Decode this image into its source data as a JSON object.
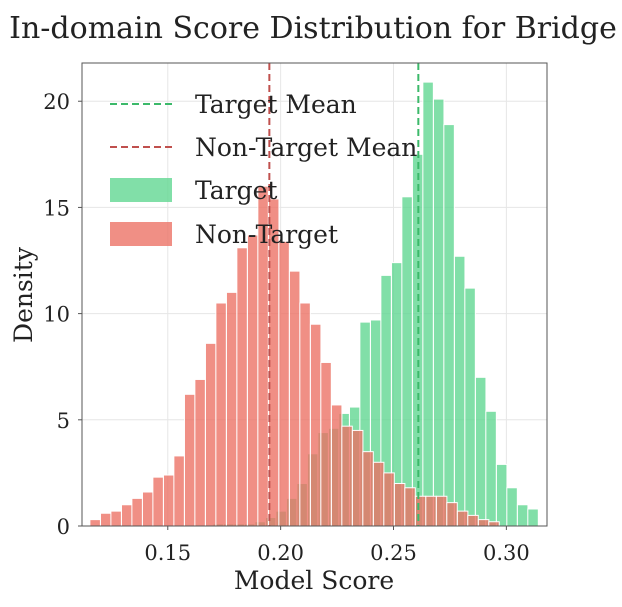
{
  "chart_data": {
    "type": "bar",
    "title": "In-domain Score Distribution for Bridge",
    "xlabel": "Model Score",
    "ylabel": "Density",
    "xlim": [
      0.112,
      0.318
    ],
    "ylim": [
      0,
      21.8
    ],
    "xticks": [
      0.15,
      0.2,
      0.25,
      0.3
    ],
    "xtick_labels": [
      "0.15",
      "0.20",
      "0.25",
      "0.30"
    ],
    "yticks": [
      0,
      5,
      10,
      15,
      20
    ],
    "ytick_labels": [
      "0",
      "5",
      "10",
      "15",
      "20"
    ],
    "grid": true,
    "legend_position": "top-left",
    "bin_width": 0.00465,
    "series": [
      {
        "name": "Target",
        "kind": "histogram",
        "color": "#5dd68f",
        "bins": [
          {
            "x0": 0.17,
            "value": 0.1
          },
          {
            "x0": 0.1747,
            "value": 0.1
          },
          {
            "x0": 0.1793,
            "value": 0.1
          },
          {
            "x0": 0.184,
            "value": 0.1
          },
          {
            "x0": 0.1886,
            "value": 0.2
          },
          {
            "x0": 0.1933,
            "value": 0.4
          },
          {
            "x0": 0.1979,
            "value": 0.7
          },
          {
            "x0": 0.2026,
            "value": 1.3
          },
          {
            "x0": 0.2072,
            "value": 2.0
          },
          {
            "x0": 0.2119,
            "value": 3.4
          },
          {
            "x0": 0.2165,
            "value": 4.4
          },
          {
            "x0": 0.2212,
            "value": 4.6
          },
          {
            "x0": 0.2258,
            "value": 5.3
          },
          {
            "x0": 0.2305,
            "value": 5.6
          },
          {
            "x0": 0.2351,
            "value": 9.6
          },
          {
            "x0": 0.2398,
            "value": 9.7
          },
          {
            "x0": 0.2444,
            "value": 11.8
          },
          {
            "x0": 0.2491,
            "value": 12.4
          },
          {
            "x0": 0.2537,
            "value": 15.5
          },
          {
            "x0": 0.2584,
            "value": 17.5
          },
          {
            "x0": 0.263,
            "value": 20.9
          },
          {
            "x0": 0.2677,
            "value": 20.1
          },
          {
            "x0": 0.2723,
            "value": 18.9
          },
          {
            "x0": 0.277,
            "value": 12.7
          },
          {
            "x0": 0.2816,
            "value": 11.2
          },
          {
            "x0": 0.2863,
            "value": 7.0
          },
          {
            "x0": 0.2909,
            "value": 5.4
          },
          {
            "x0": 0.2956,
            "value": 2.9
          },
          {
            "x0": 0.3002,
            "value": 1.8
          },
          {
            "x0": 0.3049,
            "value": 1.0
          },
          {
            "x0": 0.3095,
            "value": 0.8
          }
        ]
      },
      {
        "name": "Non-Target",
        "kind": "histogram",
        "color": "#ec7063",
        "bins": [
          {
            "x0": 0.1155,
            "value": 0.3
          },
          {
            "x0": 0.1202,
            "value": 0.6
          },
          {
            "x0": 0.1248,
            "value": 0.7
          },
          {
            "x0": 0.1295,
            "value": 1.0
          },
          {
            "x0": 0.1341,
            "value": 1.3
          },
          {
            "x0": 0.1388,
            "value": 1.6
          },
          {
            "x0": 0.1434,
            "value": 2.3
          },
          {
            "x0": 0.1481,
            "value": 2.4
          },
          {
            "x0": 0.1527,
            "value": 3.3
          },
          {
            "x0": 0.1574,
            "value": 6.2
          },
          {
            "x0": 0.162,
            "value": 6.9
          },
          {
            "x0": 0.1667,
            "value": 8.6
          },
          {
            "x0": 0.1713,
            "value": 10.5
          },
          {
            "x0": 0.176,
            "value": 11.0
          },
          {
            "x0": 0.1806,
            "value": 13.1
          },
          {
            "x0": 0.1853,
            "value": 13.7
          },
          {
            "x0": 0.1899,
            "value": 16.0
          },
          {
            "x0": 0.1946,
            "value": 15.4
          },
          {
            "x0": 0.1992,
            "value": 13.4
          },
          {
            "x0": 0.2039,
            "value": 12.0
          },
          {
            "x0": 0.2085,
            "value": 10.5
          },
          {
            "x0": 0.2132,
            "value": 9.5
          },
          {
            "x0": 0.2178,
            "value": 7.7
          },
          {
            "x0": 0.2225,
            "value": 5.7
          },
          {
            "x0": 0.2271,
            "value": 4.7
          },
          {
            "x0": 0.2318,
            "value": 4.5
          },
          {
            "x0": 0.2364,
            "value": 3.5
          },
          {
            "x0": 0.2411,
            "value": 3.0
          },
          {
            "x0": 0.2457,
            "value": 2.5
          },
          {
            "x0": 0.2504,
            "value": 2.0
          },
          {
            "x0": 0.255,
            "value": 1.8
          },
          {
            "x0": 0.2597,
            "value": 1.4
          },
          {
            "x0": 0.2643,
            "value": 1.4
          },
          {
            "x0": 0.269,
            "value": 1.4
          },
          {
            "x0": 0.2736,
            "value": 1.1
          },
          {
            "x0": 0.2783,
            "value": 0.7
          },
          {
            "x0": 0.2829,
            "value": 0.5
          },
          {
            "x0": 0.2876,
            "value": 0.3
          },
          {
            "x0": 0.2922,
            "value": 0.2
          }
        ]
      }
    ],
    "mean_lines": [
      {
        "name": "Target Mean",
        "x": 0.261,
        "color": "#3cb96a",
        "style": "dashed"
      },
      {
        "name": "Non-Target Mean",
        "x": 0.195,
        "color": "#c0504d",
        "style": "dashed"
      }
    ],
    "legend": [
      {
        "label": "Target Mean",
        "kind": "line",
        "color": "#3cb96a"
      },
      {
        "label": "Non-Target Mean",
        "kind": "line",
        "color": "#c0504d"
      },
      {
        "label": "Target",
        "kind": "patch",
        "color": "#5dd68f"
      },
      {
        "label": "Non-Target",
        "kind": "patch",
        "color": "#ec7063"
      }
    ]
  }
}
